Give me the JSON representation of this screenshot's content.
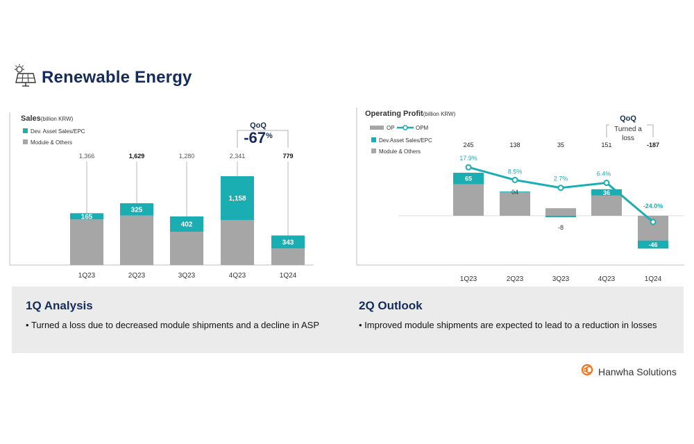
{
  "section": {
    "title": "Renewable Energy",
    "icon": "solar-panel-icon"
  },
  "colors": {
    "teal": "#1aaeb3",
    "gray": "#a6a6a6",
    "navy": "#152c5b",
    "frame": "#bfbfbf"
  },
  "chart_data": [
    {
      "type": "bar",
      "title": "Sales",
      "unit": "(billion KRW)",
      "legend": [
        "Dev. Asset Sales/EPC",
        "Module & Others"
      ],
      "categories": [
        "1Q23",
        "2Q23",
        "3Q23",
        "4Q23",
        "1Q24"
      ],
      "totals": [
        "1,366",
        "1,629",
        "1,280",
        "2,341",
        "779"
      ],
      "series": [
        {
          "name": "Dev. Asset Sales/EPC",
          "values": [
            165,
            325,
            402,
            1158,
            343
          ],
          "labels": [
            "165",
            "325",
            "402",
            "1,158",
            "343"
          ]
        },
        {
          "name": "Module & Others",
          "values": [
            1201,
            1304,
            878,
            1183,
            436
          ]
        }
      ],
      "qoq": {
        "label": "QoQ",
        "value": "-67",
        "suffix": "%"
      }
    },
    {
      "type": "bar",
      "title": "Operating Profit",
      "unit": "(billion KRW)",
      "legend": [
        "OP",
        "OPM",
        "Dev.Asset Sales/EPC",
        "Module & Others"
      ],
      "categories": [
        "1Q23",
        "2Q23",
        "3Q23",
        "4Q23",
        "1Q24"
      ],
      "totals": [
        "245",
        "138",
        "35",
        "151",
        "-187"
      ],
      "op_values": [
        245,
        138,
        35,
        151,
        -187
      ],
      "series": [
        {
          "name": "Dev.Asset Sales/EPC",
          "values": [
            65,
            4,
            -8,
            36,
            -46
          ],
          "labels": [
            "65",
            "04",
            "-8",
            "36",
            "-46"
          ]
        },
        {
          "name": "Module & Others",
          "values": [
            180,
            134,
            43,
            115,
            -141
          ]
        }
      ],
      "opm": {
        "name": "OPM",
        "values": [
          17.9,
          8.5,
          2.7,
          6.4,
          -24.0
        ],
        "labels": [
          "17.9%",
          "8.5%",
          "2.7%",
          "6.4%",
          "-24.0%"
        ]
      },
      "qoq": {
        "label": "QoQ",
        "note_lines": [
          "Turned a",
          "loss"
        ]
      }
    }
  ],
  "analysis": {
    "left": {
      "heading": "1Q Analysis",
      "bullet": "Turned a loss due to decreased module shipments and a decline in ASP"
    },
    "right": {
      "heading": "2Q Outlook",
      "bullet": "Improved module shipments are expected to lead to a reduction in losses"
    }
  },
  "logo": {
    "name": "Hanwha Solutions",
    "icon": "hanwha-logo-icon"
  }
}
